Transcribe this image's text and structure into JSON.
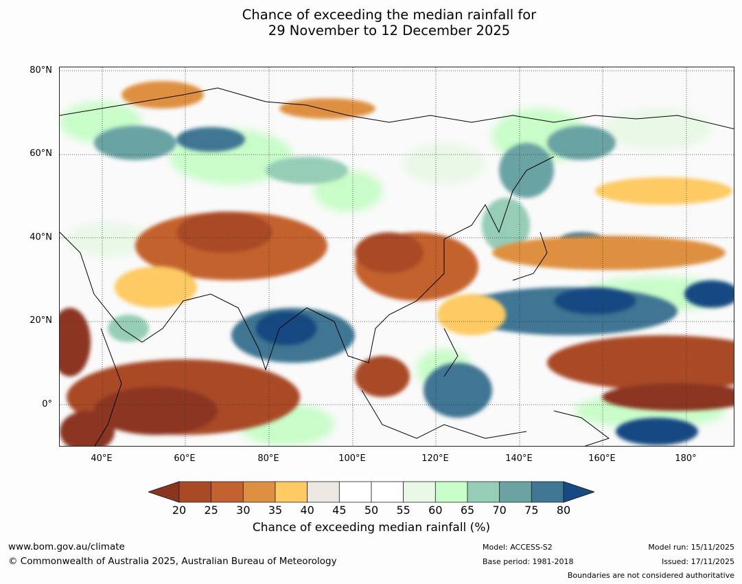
{
  "title": {
    "line1": "Chance of exceeding the median rainfall for",
    "line2": "29 November to 12 December 2025"
  },
  "map": {
    "lat_labels": [
      "80°N",
      "60°N",
      "40°N",
      "20°N",
      "0°"
    ],
    "lon_labels": [
      "40°E",
      "60°E",
      "80°E",
      "100°E",
      "120°E",
      "140°E",
      "160°E",
      "180°"
    ]
  },
  "colorbar": {
    "ticks": [
      "20",
      "25",
      "30",
      "35",
      "40",
      "45",
      "50",
      "55",
      "60",
      "65",
      "70",
      "75",
      "80"
    ],
    "colors": [
      "#8b3420",
      "#a94a26",
      "#c4622f",
      "#de9040",
      "#fdca63",
      "#ece8e2",
      "#ffffff",
      "#ffffff",
      "#e9f8e7",
      "#c8fcc8",
      "#96cdb6",
      "#6ba3a3",
      "#3f7693",
      "#154a82"
    ],
    "label": "Chance of exceeding median rainfall (%)"
  },
  "footer": {
    "website": "www.bom.gov.au/climate",
    "copyright": "© Commonwealth of Australia 2025, Australian Bureau of Meteorology",
    "model": "Model: ACCESS-S2",
    "base_period": "Base period: 1981-2018",
    "model_run": "Model run: 15/11/2025",
    "issued": "Issued: 17/11/2025",
    "disclaimer": "Boundaries are not considered authoritative"
  }
}
